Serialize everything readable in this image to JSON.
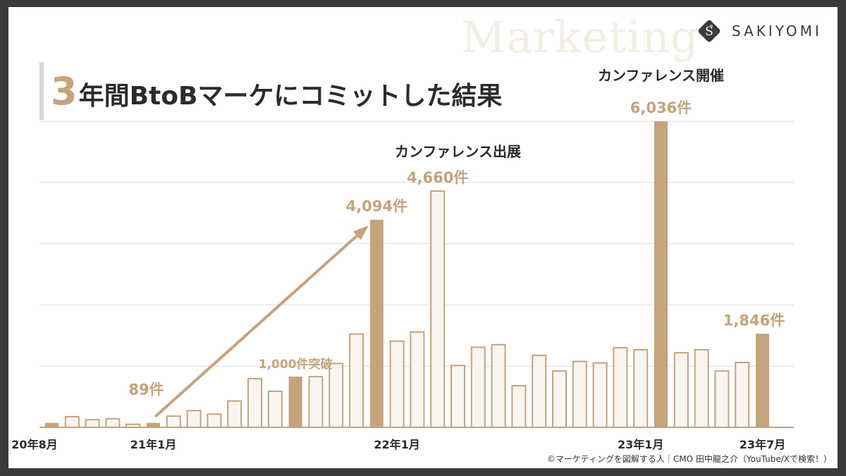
{
  "header": {
    "watermark": "Marketing",
    "brand": "SAKIYOMI",
    "title_number": "3",
    "title_rest": "年間BtoBマーケにコミットした結果"
  },
  "footer": {
    "credit": "©マーケティングを図解する人｜CMO 田中龍之介（YouTube/Xで検索！）"
  },
  "colors": {
    "accent": "#c5a37d",
    "bar_light_fill": "#faf5f0",
    "bar_light_stroke": "#c5a37d",
    "text": "#2b2b2b",
    "grid": "#dddddd"
  },
  "chart_data": {
    "type": "bar",
    "ylim": [
      0,
      6036
    ],
    "grid": true,
    "x_ticks": [
      {
        "index": 0,
        "label": "20年8月"
      },
      {
        "index": 5,
        "label": "21年1月"
      },
      {
        "index": 17,
        "label": "22年1月"
      },
      {
        "index": 29,
        "label": "23年1月"
      },
      {
        "index": 35,
        "label": "23年7月"
      }
    ],
    "values": [
      89,
      210,
      150,
      170,
      60,
      89,
      220,
      330,
      260,
      520,
      960,
      710,
      1000,
      1000,
      1260,
      1840,
      4094,
      1700,
      1880,
      4660,
      1220,
      1580,
      1630,
      820,
      1420,
      1110,
      1300,
      1270,
      1570,
      1530,
      6036,
      1470,
      1530,
      1110,
      1280,
      1846
    ],
    "highlight": [
      0,
      5,
      12,
      16,
      30,
      35
    ],
    "data_labels": [
      {
        "index": 5,
        "text": "89件"
      },
      {
        "index": 12,
        "text": "1,000件突破"
      },
      {
        "index": 16,
        "text": "4,094件"
      },
      {
        "index": 19,
        "text": "4,660件"
      },
      {
        "index": 30,
        "text": "6,036件"
      },
      {
        "index": 35,
        "text": "1,846件"
      }
    ],
    "annotations": [
      {
        "index": 20,
        "text": "カンファレンス出展"
      },
      {
        "index": 30,
        "text": "カンファレンス開催"
      }
    ],
    "arrow": {
      "from_index": 5,
      "to_index": 16
    }
  }
}
